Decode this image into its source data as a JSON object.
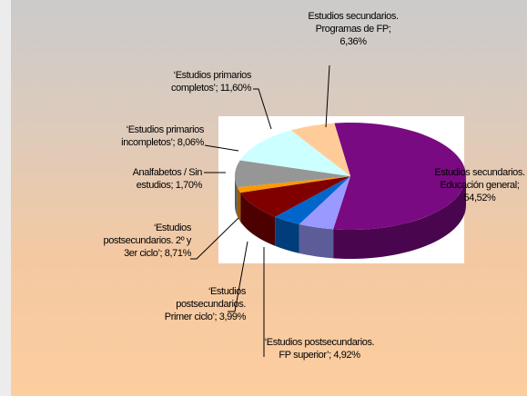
{
  "chart_data": {
    "type": "pie3d",
    "values": [
      54.52,
      4.92,
      3.99,
      8.71,
      1.7,
      8.06,
      11.6,
      6.36
    ],
    "value_labels": [
      "Estudios secundarios. Educación general; 54,52%",
      "‘Estudios postsecundarios. FP superior’; 4,92%",
      "‘Estudios postsecundarios. Primer ciclo’; 3,99%",
      "‘Estudios postsecundarios. 2º y 3er ciclo’; 8,71%",
      "Analfabetos / Sin estudios; 1,70%",
      "‘Estudios primarios incompletos’; 8,06%",
      "‘Estudios primarios completos’; 11,60%",
      "Estudios secundarios. Programas de FP; 6,36%"
    ],
    "colors": [
      "#7a0a82",
      "#9999ff",
      "#0066cc",
      "#800000",
      "#ff9900",
      "#969696",
      "#ccffff",
      "#ffcc99"
    ]
  }
}
